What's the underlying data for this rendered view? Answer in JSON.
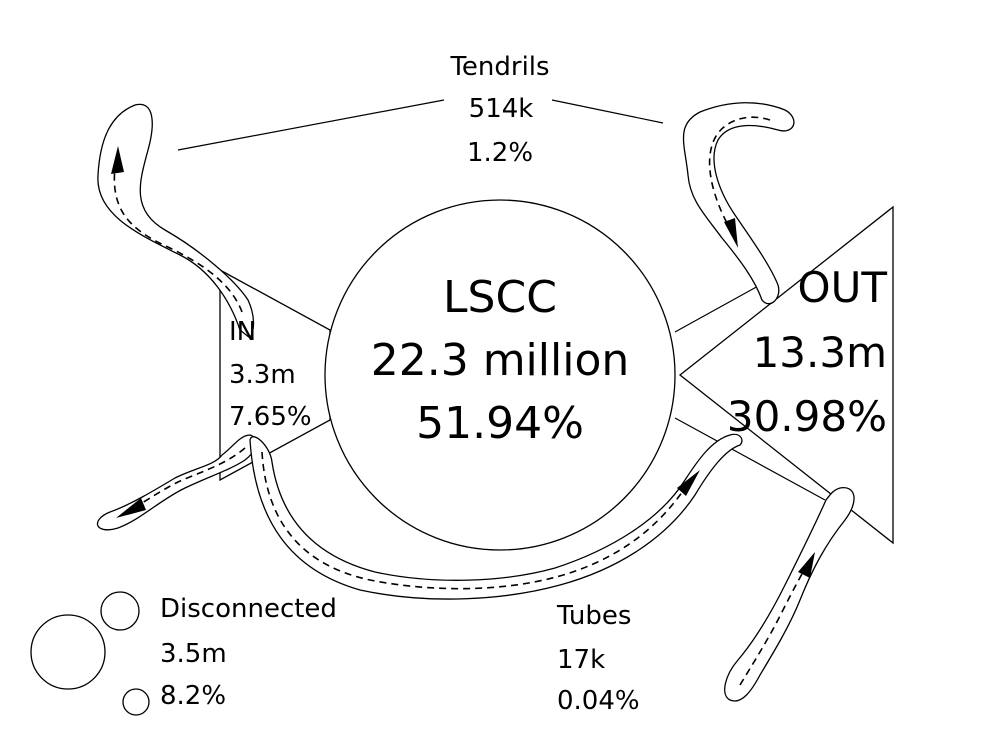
{
  "lscc": {
    "label": "LSCC",
    "count": "22.3 million",
    "percent": "51.94%"
  },
  "in": {
    "label": "IN",
    "count": "3.3m",
    "percent": "7.65%"
  },
  "out": {
    "label": "OUT",
    "count": "13.3m",
    "percent": "30.98%"
  },
  "tendrils": {
    "label": "Tendrils",
    "count": "514k",
    "percent": "1.2%"
  },
  "tubes": {
    "label": "Tubes",
    "count": "17k",
    "percent": "0.04%"
  },
  "disconnected": {
    "label": "Disconnected",
    "count": "3.5m",
    "percent": "8.2%"
  }
}
